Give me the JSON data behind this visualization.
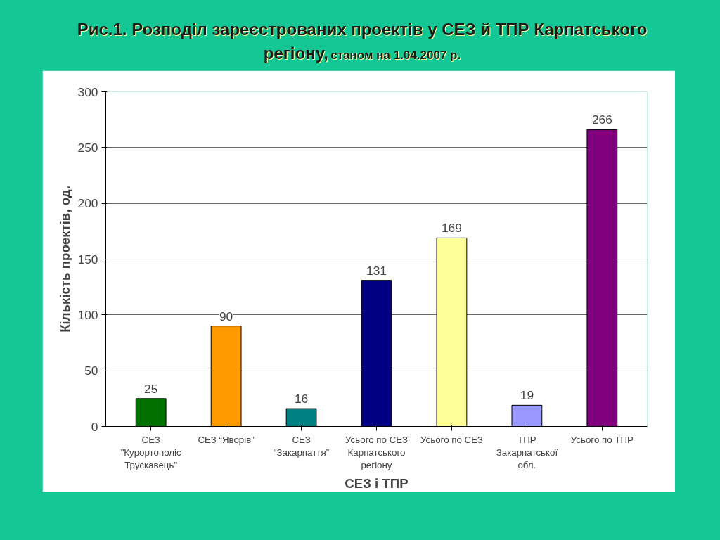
{
  "chart_data": {
    "type": "bar",
    "title": "Рис.1. Розподіл зареєстрованих проектів у СЕЗ й ТПР Карпатського регіону,",
    "subtitle": "станом на 1.04.2007 р.",
    "xlabel": "СЕЗ і ТПР",
    "ylabel": "Кількість проектів, од.",
    "categories": [
      "СЕЗ \"Курортополіс Трускавець\"",
      "СЕЗ “Яворів”",
      "СЕЗ “Закарпаття”",
      "Усього по СЕЗ Карпатського регіону",
      "Усього по СЕЗ",
      "ТПР Закарпатської обл.",
      "Усього по ТПР"
    ],
    "values": [
      25,
      90,
      16,
      131,
      169,
      19,
      266
    ],
    "colors": [
      "#007000",
      "#ff9900",
      "#008080",
      "#000080",
      "#ffff99",
      "#9999ff",
      "#800080"
    ],
    "ylim": [
      0,
      300
    ],
    "yticks": [
      0,
      50,
      100,
      150,
      200,
      250,
      300
    ],
    "grid": "y",
    "data_labels": true
  }
}
